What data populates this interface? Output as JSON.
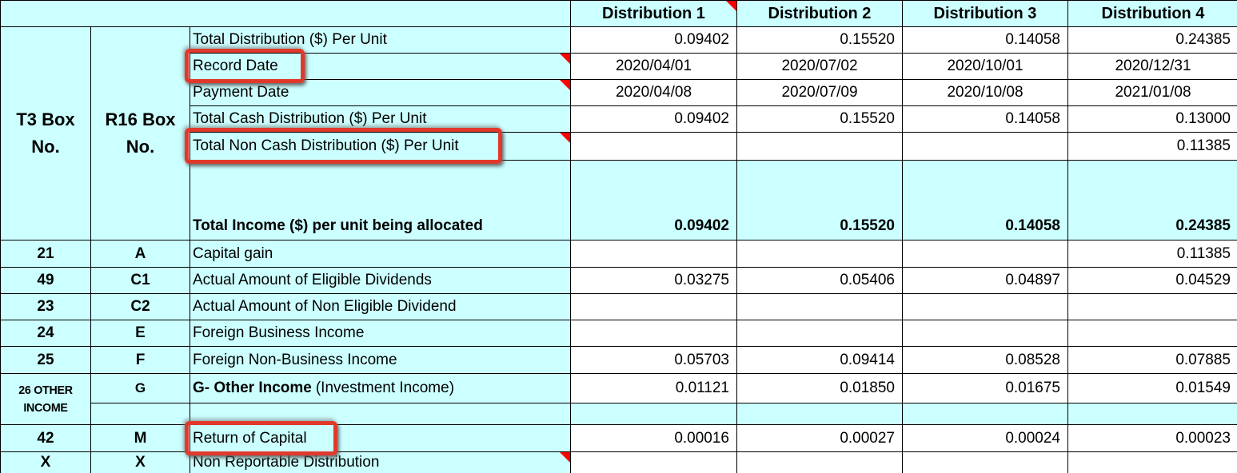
{
  "colors": {
    "cell_bg": "#CCFFFF",
    "value_bg": "#FFFFFF",
    "grid_border": "#000000",
    "comment_marker": "#FF0000",
    "highlight_box": "#E0392C"
  },
  "left_headers": {
    "t3": "T3 Box No.",
    "r16": "R16 Box No."
  },
  "column_headers": [
    "Distribution 1",
    "Distribution 2",
    "Distribution 3",
    "Distribution 4"
  ],
  "info_rows": [
    {
      "label": "Total Distribution ($) Per Unit",
      "values": [
        "0.09402",
        "0.15520",
        "0.14058",
        "0.24385"
      ]
    },
    {
      "label": "Record Date",
      "values": [
        "2020/04/01",
        "2020/07/02",
        "2020/10/01",
        "2020/12/31"
      ]
    },
    {
      "label": "Payment Date",
      "values": [
        "2020/04/08",
        "2020/07/09",
        "2020/10/08",
        "2021/01/08"
      ]
    },
    {
      "label": "Total Cash Distribution ($) Per Unit",
      "values": [
        "0.09402",
        "0.15520",
        "0.14058",
        "0.13000"
      ]
    },
    {
      "label": "Total Non Cash Distribution ($) Per Unit",
      "values": [
        "",
        "",
        "",
        "0.11385"
      ]
    },
    {
      "label": "Total Income ($) per unit being allocated",
      "values": [
        "0.09402",
        "0.15520",
        "0.14058",
        "0.24385"
      ]
    }
  ],
  "allocation_rows": [
    {
      "t3": "21",
      "r16": "A",
      "label": "Capital gain",
      "values": [
        "",
        "",
        "",
        "0.11385"
      ]
    },
    {
      "t3": "49",
      "r16": "C1",
      "label": "Actual Amount of Eligible Dividends",
      "values": [
        "0.03275",
        "0.05406",
        "0.04897",
        "0.04529"
      ]
    },
    {
      "t3": "23",
      "r16": "C2",
      "label": "Actual Amount of Non Eligible Dividend",
      "values": [
        "",
        "",
        "",
        ""
      ]
    },
    {
      "t3": "24",
      "r16": "E",
      "label": "Foreign Business Income",
      "values": [
        "",
        "",
        "",
        ""
      ]
    },
    {
      "t3": "25",
      "r16": "F",
      "label": "Foreign Non-Business Income",
      "values": [
        "0.05703",
        "0.09414",
        "0.08528",
        "0.07885"
      ]
    },
    {
      "t3": "26 OTHER INCOME",
      "r16": "G",
      "label_bold": "G- Other Income",
      "label_rest": "(Investment Income)",
      "values": [
        "0.01121",
        "0.01850",
        "0.01675",
        "0.01549"
      ]
    },
    {
      "t3": "42",
      "r16": "M",
      "label": "Return of Capital",
      "values": [
        "0.00016",
        "0.00027",
        "0.00024",
        "0.00023"
      ]
    },
    {
      "t3": "X",
      "r16": "X",
      "label": "Non Reportable Distribution",
      "values": [
        "",
        "",
        "",
        ""
      ]
    }
  ],
  "annotations": {
    "highlighted_labels": [
      "Record Date",
      "Total Non Cash Distribution ($) Per Unit",
      "Return of Capital"
    ]
  }
}
